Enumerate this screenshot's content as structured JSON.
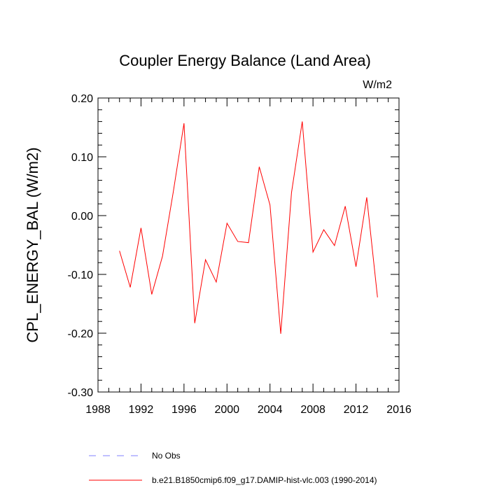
{
  "chart_data": {
    "type": "line",
    "title": "Coupler Energy Balance (Land Area)",
    "units": "W/m2",
    "ylabel": "CPL_ENERGY_BAL  (W/m2)",
    "xlabel": "",
    "xlim": [
      1988,
      2016
    ],
    "ylim": [
      -0.3,
      0.2
    ],
    "xticks": [
      "1988",
      "1992",
      "1996",
      "2000",
      "2004",
      "2008",
      "2012",
      "2016"
    ],
    "yticks": [
      "-0.30",
      "-0.20",
      "-0.10",
      "0.00",
      "0.10",
      "0.20"
    ],
    "grid": false,
    "legend_position": "bottom",
    "series": [
      {
        "name": "b.e21.B1850cmip6.f09_g17.DAMIP-hist-vlc.003 (1990-2014)",
        "color": "#ff0000",
        "style": "solid",
        "x": [
          1990,
          1991,
          1992,
          1993,
          1994,
          1995,
          1996,
          1997,
          1998,
          1999,
          2000,
          2001,
          2002,
          2003,
          2004,
          2005,
          2006,
          2007,
          2008,
          2009,
          2010,
          2011,
          2012,
          2013,
          2014
        ],
        "values": [
          -0.06,
          -0.122,
          -0.021,
          -0.134,
          -0.069,
          0.04,
          0.157,
          -0.183,
          -0.075,
          -0.113,
          -0.013,
          -0.044,
          -0.046,
          0.083,
          0.018,
          -0.201,
          0.039,
          0.16,
          -0.062,
          -0.024,
          -0.051,
          0.016,
          -0.087,
          0.031,
          -0.139
        ]
      }
    ],
    "legend": [
      {
        "label": "No Obs",
        "color": "#8080ff",
        "style": "dashed"
      },
      {
        "label": "b.e21.B1850cmip6.f09_g17.DAMIP-hist-vlc.003 (1990-2014)",
        "color": "#ff0000",
        "style": "solid"
      }
    ]
  }
}
